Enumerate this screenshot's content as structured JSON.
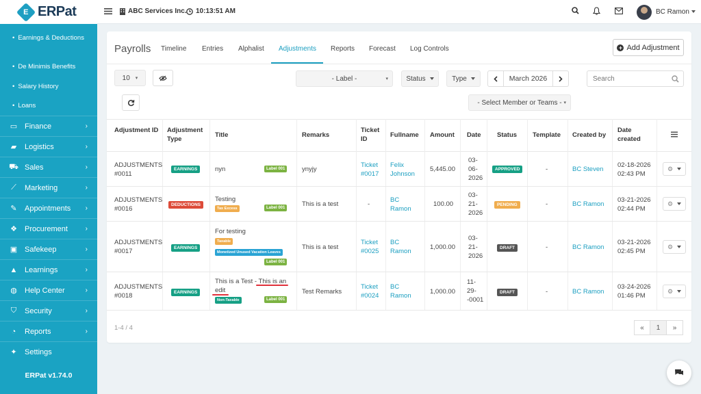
{
  "app": {
    "logo_text": "ERPat",
    "company": "ABC Services Inc.",
    "time": "10:13:51 AM",
    "user": "BC Ramon",
    "version": "ERPat v1.74.0"
  },
  "sidebar": {
    "sub_items": [
      "Earnings & Deductions",
      "De Minimis Benefits",
      "Salary History",
      "Loans"
    ],
    "items": [
      {
        "label": "Finance",
        "icon": "finance-icon",
        "chevron": true
      },
      {
        "label": "Logistics",
        "icon": "truck-icon",
        "chevron": true
      },
      {
        "label": "Sales",
        "icon": "cart-icon",
        "chevron": true
      },
      {
        "label": "Marketing",
        "icon": "chart-icon",
        "chevron": true
      },
      {
        "label": "Appointments",
        "icon": "edit-icon",
        "chevron": true
      },
      {
        "label": "Procurement",
        "icon": "cubes-icon",
        "chevron": true
      },
      {
        "label": "Safekeep",
        "icon": "safe-icon",
        "chevron": true
      },
      {
        "label": "Learnings",
        "icon": "graduation-icon",
        "chevron": true
      },
      {
        "label": "Help Center",
        "icon": "globe-icon",
        "chevron": true
      },
      {
        "label": "Security",
        "icon": "shield-icon",
        "chevron": true
      },
      {
        "label": "Reports",
        "icon": "pie-icon",
        "chevron": true
      },
      {
        "label": "Settings",
        "icon": "wrench-icon",
        "chevron": false
      }
    ]
  },
  "page": {
    "title": "Payrolls",
    "tabs": [
      "Timeline",
      "Entries",
      "Alphalist",
      "Adjustments",
      "Reports",
      "Forecast",
      "Log Controls"
    ],
    "active_tab": "Adjustments",
    "add_button": "Add Adjustment"
  },
  "filters": {
    "page_size": "10",
    "label_select": "- Label -",
    "status": "Status",
    "type": "Type",
    "month": "March 2026",
    "search_placeholder": "Search",
    "member_select": "- Select Member or Teams -"
  },
  "table": {
    "headers": {
      "id": "Adjustment ID",
      "type": "Adjustment Type",
      "title": "Title",
      "remarks": "Remarks",
      "ticket": "Ticket ID",
      "fullname": "Fullname",
      "amount": "Amount",
      "date": "Date",
      "status": "Status",
      "template": "Template",
      "created_by": "Created by",
      "date_created": "Date created"
    },
    "rows": [
      {
        "id_a": "ADJUSTMENTS",
        "id_b": "#0011",
        "type": "EARNINGS",
        "title": "nyn",
        "labels": [
          "Label 001"
        ],
        "remarks": "ynyjy",
        "ticket_a": "Ticket",
        "ticket_b": "#0017",
        "name_a": "Felix",
        "name_b": "Johnson",
        "amount": "5,445.00",
        "date_a": "03-",
        "date_b": "06-",
        "date_c": "2026",
        "status": "APPROVED",
        "template": "-",
        "created_by": "BC Steven",
        "created_a": "02-18-2026",
        "created_b": "02:43 PM"
      },
      {
        "id_a": "ADJUSTMENTS",
        "id_b": "#0016",
        "type": "DEDUCTIONS",
        "title": "Testing",
        "tag1": "Tax Excess",
        "labels": [
          "Label 001"
        ],
        "remarks": "This is a test",
        "ticket_a": "-",
        "ticket_b": "",
        "name_a": "BC",
        "name_b": "Ramon",
        "amount": "100.00",
        "date_a": "03-",
        "date_b": "21-",
        "date_c": "2026",
        "status": "PENDING",
        "template": "-",
        "created_by": "BC Ramon",
        "created_a": "03-21-2026",
        "created_b": "02:44 PM"
      },
      {
        "id_a": "ADJUSTMENTS",
        "id_b": "#0017",
        "type": "EARNINGS",
        "title": "For testing",
        "tag1": "Taxable",
        "tag2": "Monetized Unused Vacation Leaves",
        "labels": [
          "Label 001"
        ],
        "remarks": "This is a test",
        "ticket_a": "Ticket",
        "ticket_b": "#0025",
        "name_a": "BC",
        "name_b": "Ramon",
        "amount": "1,000.00",
        "date_a": "03-",
        "date_b": "21-",
        "date_c": "2026",
        "status": "DRAFT",
        "template": "-",
        "created_by": "BC Ramon",
        "created_a": "03-21-2026",
        "created_b": "02:45 PM"
      },
      {
        "id_a": "ADJUSTMENTS",
        "id_b": "#0018",
        "type": "EARNINGS",
        "title_a": "This is a Test - ",
        "title_b": "This is an",
        "title_c": "edit",
        "tag1": "Non-Taxable",
        "labels": [
          "Label 001"
        ],
        "remarks": "Test Remarks",
        "ticket_a": "Ticket",
        "ticket_b": "#0024",
        "name_a": "BC",
        "name_b": "Ramon",
        "amount": "1,000.00",
        "date_a": "11-",
        "date_b": "29-",
        "date_c": "-0001",
        "status": "DRAFT",
        "template": "-",
        "created_by": "BC Ramon",
        "created_a": "03-24-2026",
        "created_b": "01:46 PM"
      }
    ]
  },
  "footer": {
    "range": "1-4 / 4",
    "page": "1",
    "prev": "«",
    "next": "»"
  },
  "colors": {
    "sidebar": "#1aa3c3",
    "accent": "#1a9ec0",
    "earnings": "#16a085",
    "deductions": "#dd4b39",
    "pending": "#f0ad4e",
    "draft": "#555555",
    "label": "#7cb342"
  }
}
